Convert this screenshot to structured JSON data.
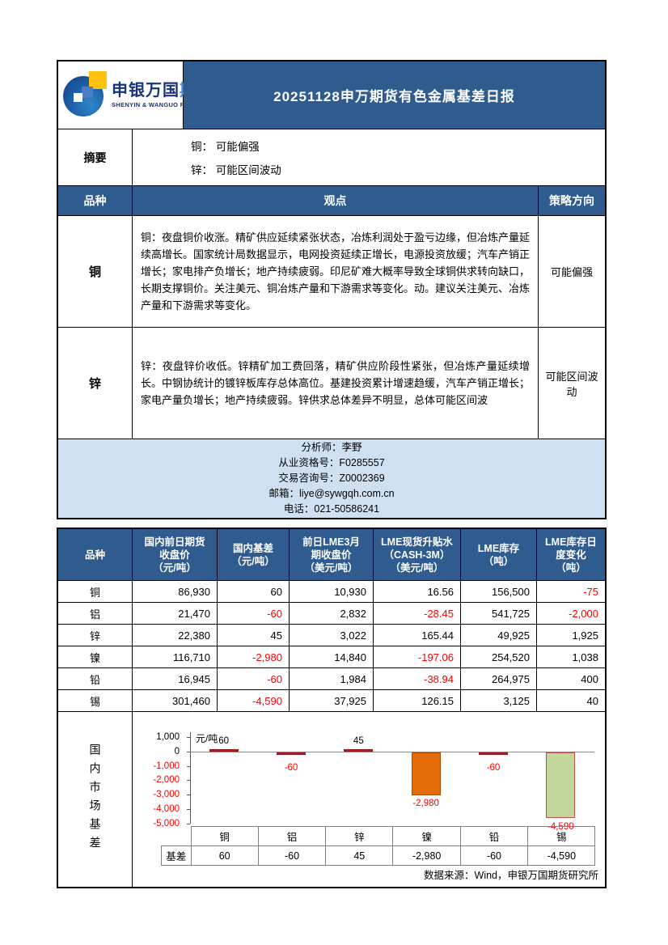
{
  "logo": {
    "name_cn": "申银万国",
    "name_cn_accent": "期货",
    "name_en": "SHENYIN & WANGUO FUTURES"
  },
  "header": {
    "title": "20251128申万期货有色金属基差日报"
  },
  "summary": {
    "label": "摘要",
    "lines": [
      "铜： 可能偏强",
      "锌： 可能区间波动"
    ]
  },
  "opinion_table": {
    "headers": [
      "品种",
      "观点",
      "策略方向"
    ],
    "rows": [
      {
        "variety": "铜",
        "view": "铜：夜盘铜价收涨。精矿供应延续紧张状态，冶炼利润处于盈亏边缘，但冶炼产量延续高增长。国家统计局数据显示，电网投资延续正增长，电源投资放缓；汽车产销正增长；家电排产负增长；地产持续疲弱。印尼矿难大概率导致全球铜供求转向缺口，长期支撑铜价。关注美元、铜冶炼产量和下游需求等变化。动。建议关注美元、冶炼产量和下游需求等变化。",
        "strategy": "可能偏强"
      },
      {
        "variety": "锌",
        "view": "锌：夜盘锌价收低。锌精矿加工费回落，精矿供应阶段性紧张，但冶炼产量延续增长。中钢协统计的镀锌板库存总体高位。基建投资累计增速趋缓，汽车产销正增长；家电产量负增长；地产持续疲弱。锌供求总体差异不明显，总体可能区间波",
        "strategy": "可能区间波动"
      }
    ]
  },
  "analyst": {
    "lines": [
      "分析师：李野",
      "从业资格号：F0285557",
      "交易咨询号：Z0002369",
      "邮箱：liye@sywgqh.com.cn",
      "电话：021-50586241"
    ]
  },
  "data_table": {
    "headers": [
      "品种",
      "国内前日期货\n收盘价\n（元/吨）",
      "国内基差\n（元/吨）",
      "前日LME3月\n期收盘价\n（美元/吨）",
      "LME现货升贴水\n（CASH-3M）\n（美元/吨）",
      "LME库存\n（吨）",
      "LME库存日\n度变化\n（吨）"
    ],
    "rows": [
      {
        "variety": "铜",
        "values": [
          "86,930",
          "60",
          "10,930",
          "16.56",
          "156,500",
          "-75"
        ]
      },
      {
        "variety": "铝",
        "values": [
          "21,470",
          "-60",
          "2,832",
          "-28.45",
          "541,725",
          "-2,000"
        ]
      },
      {
        "variety": "锌",
        "values": [
          "22,380",
          "45",
          "3,022",
          "165.44",
          "49,925",
          "1,925"
        ]
      },
      {
        "variety": "镍",
        "values": [
          "116,710",
          "-2,980",
          "14,840",
          "-197.06",
          "254,520",
          "1,038"
        ]
      },
      {
        "variety": "铅",
        "values": [
          "16,945",
          "-60",
          "1,984",
          "-38.94",
          "264,975",
          "400"
        ]
      },
      {
        "variety": "锡",
        "values": [
          "301,460",
          "-4,590",
          "37,925",
          "126.15",
          "3,125",
          "40"
        ]
      }
    ]
  },
  "chart_data": {
    "type": "bar",
    "title": "国内市场基差",
    "unit_label": "元/吨",
    "categories": [
      "铜",
      "铝",
      "锌",
      "镍",
      "铅",
      "锡"
    ],
    "series": [
      {
        "name": "基差",
        "values": [
          60,
          -60,
          45,
          -2980,
          -60,
          -4590
        ]
      }
    ],
    "value_labels": [
      "60",
      "-60",
      "45",
      "-2,980",
      "-60",
      "-4,590"
    ],
    "ylim": [
      -5000,
      1000
    ],
    "ytick_interval": 1000,
    "ytick_labels": [
      "1,000",
      "0",
      "-1,000",
      "-2,000",
      "-3,000",
      "-4,000",
      "-5,000"
    ],
    "bar_colors": [
      "#b91e23",
      "#b91e23",
      "#b91e23",
      "#e36c09",
      "#b91e23",
      "#c3d69b"
    ],
    "bar_border_colors": [
      "#8e1418",
      "#8e1418",
      "#8e1418",
      "#a34c06",
      "#8e1418",
      "#c0504d"
    ],
    "legend_position": "none",
    "show_data_table": true,
    "grid": false
  },
  "colors": {
    "header_blue": "#2f5b8f",
    "analyst_bg": "#cfe0f2",
    "negative_red": "#ff0000"
  },
  "source_note": "数据来源：Wind，申银万国期货研究所"
}
